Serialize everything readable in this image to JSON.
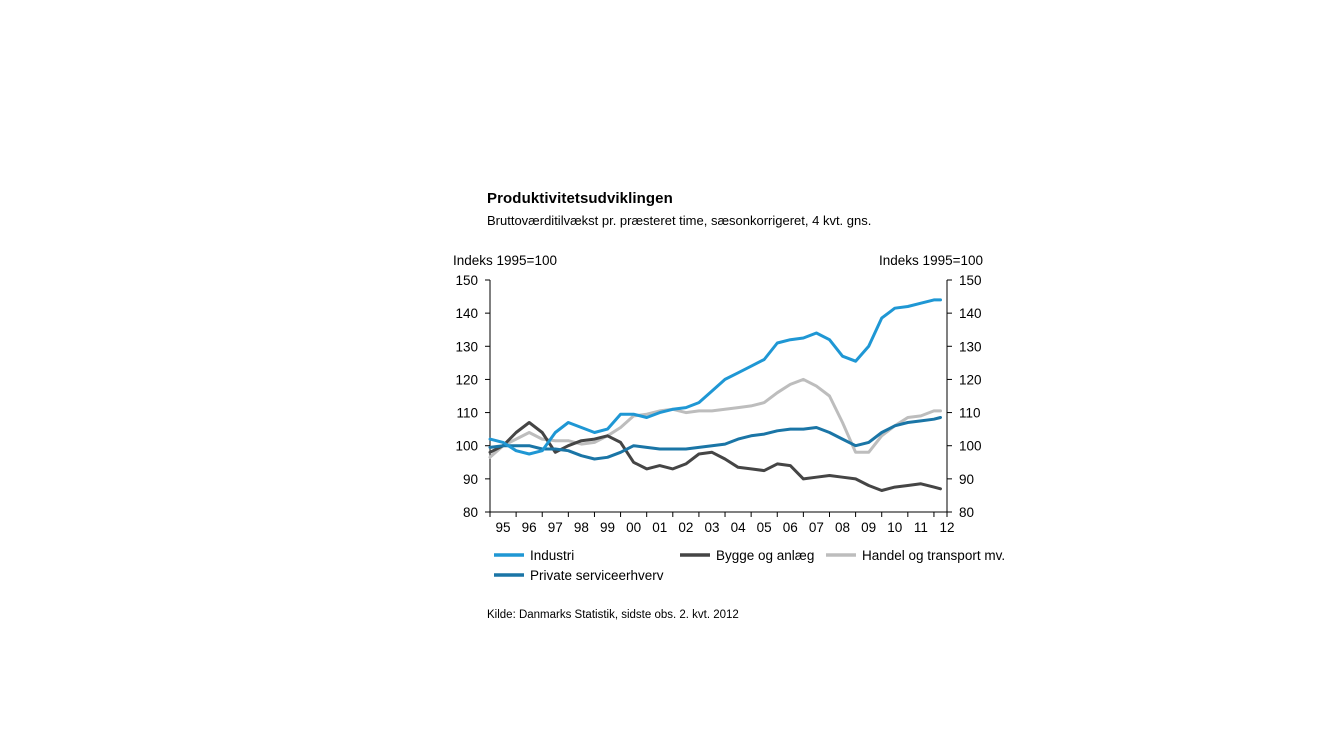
{
  "header": {
    "title": "Produktivitetsudviklingen",
    "subtitle": "Bruttoværditilvækst pr. præsteret time, sæsonkorrigeret, 4 kvt. gns."
  },
  "footer": {
    "source": "Kilde: Danmarks Statistik, sidste obs. 2. kvt. 2012"
  },
  "chart_data": {
    "type": "line",
    "title": "Produktivitetsudviklingen",
    "subtitle": "Bruttoværditilvækst pr. præsteret time, sæsonkorrigeret, 4 kvt. gns.",
    "ylabel_left": "Indeks 1995=100",
    "ylabel_right": "Indeks 1995=100",
    "ylim": [
      80,
      150
    ],
    "yticks": [
      80,
      90,
      100,
      110,
      120,
      130,
      140,
      150
    ],
    "xlim": [
      1995.0,
      2012.5
    ],
    "x_tick_labels": [
      "95",
      "96",
      "97",
      "98",
      "99",
      "00",
      "01",
      "02",
      "03",
      "04",
      "05",
      "06",
      "07",
      "08",
      "09",
      "10",
      "11",
      "12"
    ],
    "grid": false,
    "legend_position": "bottom",
    "colors": {
      "Industri": "#1f97d4",
      "Bygge og anlæg": "#454545",
      "Handel og transport mv.": "#bdbdbd",
      "Private serviceerhverv": "#1a75a6"
    },
    "series": [
      {
        "name": "Industri",
        "x": [
          1995.0,
          1995.5,
          1996.0,
          1996.5,
          1997.0,
          1997.5,
          1998.0,
          1998.5,
          1999.0,
          1999.5,
          2000.0,
          2000.5,
          2001.0,
          2001.5,
          2002.0,
          2002.5,
          2003.0,
          2003.5,
          2004.0,
          2004.5,
          2005.0,
          2005.5,
          2006.0,
          2006.5,
          2007.0,
          2007.5,
          2008.0,
          2008.5,
          2009.0,
          2009.5,
          2010.0,
          2010.5,
          2011.0,
          2011.5,
          2012.0,
          2012.25
        ],
        "values": [
          102,
          101,
          98.5,
          97.5,
          98.5,
          104,
          107,
          105.5,
          104,
          105,
          109.5,
          109.5,
          108.5,
          110,
          111,
          111.5,
          113,
          116.5,
          120,
          122,
          124,
          126,
          131,
          132,
          132.5,
          134,
          132,
          127,
          125.5,
          130,
          138.5,
          141.5,
          142,
          143,
          144,
          144
        ]
      },
      {
        "name": "Bygge og anlæg",
        "x": [
          1995.0,
          1995.5,
          1996.0,
          1996.5,
          1997.0,
          1997.5,
          1998.0,
          1998.5,
          1999.0,
          1999.5,
          2000.0,
          2000.5,
          2001.0,
          2001.5,
          2002.0,
          2002.5,
          2003.0,
          2003.5,
          2004.0,
          2004.5,
          2005.0,
          2005.5,
          2006.0,
          2006.5,
          2007.0,
          2007.5,
          2008.0,
          2008.5,
          2009.0,
          2009.5,
          2010.0,
          2010.5,
          2011.0,
          2011.5,
          2012.0,
          2012.25
        ],
        "values": [
          98,
          100,
          104,
          107,
          104,
          98,
          100,
          101.5,
          102,
          103,
          101,
          95,
          93,
          94,
          93,
          94.5,
          97.5,
          98,
          96,
          93.5,
          93,
          92.5,
          94.5,
          94,
          90,
          90.5,
          91,
          90.5,
          90,
          88,
          86.5,
          87.5,
          88,
          88.5,
          87.5,
          87
        ]
      },
      {
        "name": "Handel og transport mv.",
        "x": [
          1995.0,
          1995.5,
          1996.0,
          1996.5,
          1997.0,
          1997.5,
          1998.0,
          1998.5,
          1999.0,
          1999.5,
          2000.0,
          2000.5,
          2001.0,
          2001.5,
          2002.0,
          2002.5,
          2003.0,
          2003.5,
          2004.0,
          2004.5,
          2005.0,
          2005.5,
          2006.0,
          2006.5,
          2007.0,
          2007.5,
          2008.0,
          2008.5,
          2009.0,
          2009.5,
          2010.0,
          2010.5,
          2011.0,
          2011.5,
          2012.0,
          2012.25
        ],
        "values": [
          96.5,
          100,
          102,
          104,
          102,
          101.5,
          101.5,
          100.5,
          101,
          103,
          105.5,
          109,
          109.5,
          110.5,
          111,
          110,
          110.5,
          110.5,
          111,
          111.5,
          112,
          113,
          116,
          118.5,
          120,
          118,
          115,
          107,
          98,
          98,
          103,
          106,
          108.5,
          109,
          110.5,
          110.5
        ]
      },
      {
        "name": "Private serviceerhverv",
        "x": [
          1995.0,
          1995.5,
          1996.0,
          1996.5,
          1997.0,
          1997.5,
          1998.0,
          1998.5,
          1999.0,
          1999.5,
          2000.0,
          2000.5,
          2001.0,
          2001.5,
          2002.0,
          2002.5,
          2003.0,
          2003.5,
          2004.0,
          2004.5,
          2005.0,
          2005.5,
          2006.0,
          2006.5,
          2007.0,
          2007.5,
          2008.0,
          2008.5,
          2009.0,
          2009.5,
          2010.0,
          2010.5,
          2011.0,
          2011.5,
          2012.0,
          2012.25
        ],
        "values": [
          99.5,
          100,
          100,
          100,
          99,
          99,
          98.5,
          97,
          96,
          96.5,
          98,
          100,
          99.5,
          99,
          99,
          99,
          99.5,
          100,
          100.5,
          102,
          103,
          103.5,
          104.5,
          105,
          105,
          105.5,
          104,
          102,
          100,
          101,
          104,
          106,
          107,
          107.5,
          108,
          108.5
        ]
      }
    ]
  }
}
